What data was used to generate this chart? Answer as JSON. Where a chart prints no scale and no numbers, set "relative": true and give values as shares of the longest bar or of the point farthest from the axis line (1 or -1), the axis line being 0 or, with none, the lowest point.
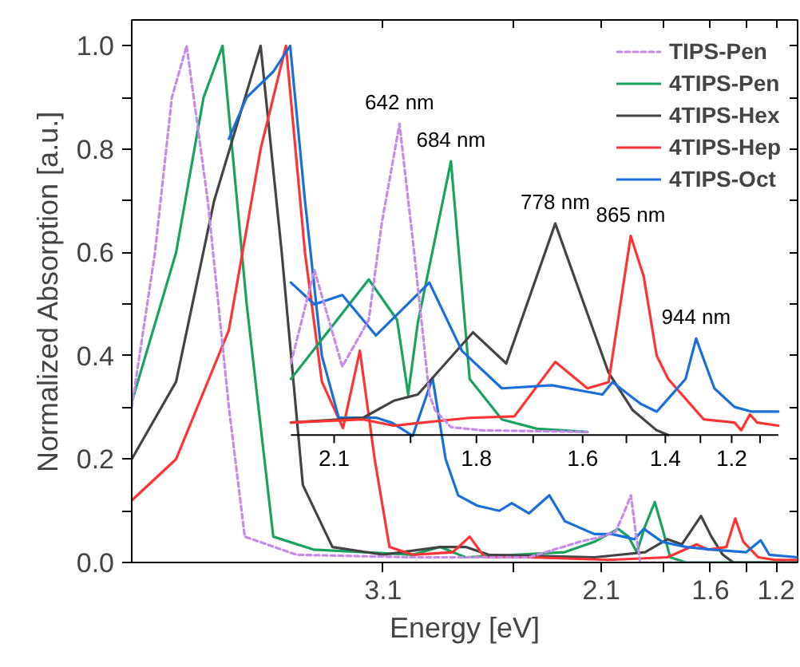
{
  "chart_data": [
    {
      "type": "line",
      "xlabel": "Energy [eV]",
      "ylabel": "Normalized Absorption [a.u.]",
      "xlim": [
        4.29,
        1.138
      ],
      "ylim": [
        0,
        1.05
      ],
      "xticks": [
        3.1,
        {
          "value": 2.48,
          "label": null
        },
        {
          "value": 2.067,
          "label": "2.1"
        },
        {
          "value": 1.771,
          "label": null
        },
        {
          "value": 1.55,
          "label": "1.6"
        },
        {
          "value": 1.378,
          "label": null
        },
        {
          "value": 1.24,
          "label": "1.2"
        }
      ],
      "yticks": [
        {
          "value": 0,
          "label": "0.0"
        },
        {
          "value": 0.1,
          "label": null
        },
        0.2,
        {
          "value": 0.3,
          "label": null
        },
        0.4,
        {
          "value": 0.5,
          "label": null
        },
        0.6,
        {
          "value": 0.7,
          "label": null
        },
        0.8,
        {
          "value": 0.9,
          "label": null
        },
        {
          "value": 1.0,
          "label": "1.0"
        }
      ],
      "grid": false,
      "legend": "top right",
      "series": [
        {
          "name": "TIPS-Pen",
          "color": "#c58be8",
          "line_style": "dashed",
          "x": [
            4.29,
            4.18,
            4.1,
            4.03,
            3.93,
            3.83,
            3.755,
            3.51,
            2.96,
            2.41,
            2.17,
            2.063,
            1.999,
            1.956,
            1.927,
            1.905,
            1.883,
            1.546
          ],
          "values": [
            0.3,
            0.6,
            0.9,
            1.0,
            0.7,
            0.3,
            0.05,
            0.015,
            0.01,
            0.01,
            0.04,
            0.05,
            0.06,
            0.1,
            0.13,
            0.06,
            0.0,
            0.0
          ]
        },
        {
          "name": "4TIPS-Pen",
          "color": "#1aa35e",
          "x": [
            4.29,
            4.08,
            3.95,
            3.86,
            3.746,
            3.62,
            3.43,
            2.96,
            2.83,
            2.71,
            2.24,
            2.1,
            1.987,
            1.939,
            1.899,
            1.86,
            1.814,
            1.774,
            1.741,
            1.665,
            1.138
          ],
          "values": [
            0.31,
            0.6,
            0.9,
            1.0,
            0.5,
            0.05,
            0.025,
            0.015,
            0.03,
            0.01,
            0.02,
            0.04,
            0.065,
            0.05,
            0.02,
            0.07,
            0.117,
            0.06,
            0.01,
            0.0,
            0.0
          ]
        },
        {
          "name": "4TIPS-Hex",
          "color": "#444444",
          "x": [
            4.29,
            4.08,
            3.9,
            3.68,
            3.58,
            3.48,
            3.34,
            3.1,
            2.83,
            2.71,
            2.6,
            2.1,
            1.86,
            1.755,
            1.686,
            1.595,
            1.546,
            1.492,
            1.442,
            1.138
          ],
          "values": [
            0.2,
            0.35,
            0.7,
            1.0,
            0.6,
            0.15,
            0.03,
            0.015,
            0.03,
            0.03,
            0.015,
            0.01,
            0.02,
            0.045,
            0.035,
            0.09,
            0.05,
            0.015,
            0.0,
            0.0
          ]
        },
        {
          "name": "4TIPS-Hep",
          "color": "#ff3333",
          "x": [
            4.29,
            4.08,
            3.83,
            3.68,
            3.56,
            3.47,
            3.39,
            3.29,
            3.21,
            3.14,
            3.07,
            2.96,
            2.77,
            2.69,
            2.62,
            2.41,
            2.03,
            1.755,
            1.615,
            1.564,
            1.475,
            1.433,
            1.395,
            1.324,
            1.247,
            1.138
          ],
          "values": [
            0.12,
            0.2,
            0.45,
            0.8,
            1.0,
            0.6,
            0.35,
            0.26,
            0.41,
            0.2,
            0.03,
            0.015,
            0.02,
            0.05,
            0.01,
            0.01,
            0.005,
            0.01,
            0.035,
            0.025,
            0.03,
            0.085,
            0.04,
            0.01,
            0.005,
            0.005
          ]
        },
        {
          "name": "4TIPS-Oct",
          "color": "#1a6fd8",
          "x": [
            3.83,
            3.746,
            3.62,
            3.54,
            3.47,
            3.39,
            3.31,
            3.13,
            3.056,
            2.96,
            2.866,
            2.804,
            2.745,
            2.655,
            2.55,
            2.491,
            2.41,
            2.313,
            2.24,
            2.1,
            2.018,
            1.91,
            1.866,
            1.779,
            1.665,
            1.546,
            1.381,
            1.313,
            1.272,
            1.138
          ],
          "values": [
            0.82,
            0.9,
            0.95,
            1.0,
            0.7,
            0.4,
            0.28,
            0.28,
            0.27,
            0.245,
            0.357,
            0.2,
            0.13,
            0.11,
            0.1,
            0.115,
            0.095,
            0.13,
            0.08,
            0.055,
            0.055,
            0.045,
            0.065,
            0.04,
            0.03,
            0.025,
            0.02,
            0.043,
            0.015,
            0.01
          ]
        }
      ]
    },
    {
      "type": "line",
      "relative": true,
      "tick_labels": "x",
      "xlim": [
        2.157,
        1.143
      ],
      "xticks": [
        {
          "value": 2.067,
          "label": "2.1"
        },
        {
          "value": 1.908,
          "label": null
        },
        {
          "value": 1.771,
          "label": "1.8"
        },
        {
          "value": 1.653,
          "label": null
        },
        {
          "value": 1.55,
          "label": "1.6"
        },
        {
          "value": 1.459,
          "label": null
        },
        {
          "value": 1.378,
          "label": "1.4"
        },
        {
          "value": 1.305,
          "label": null
        },
        {
          "value": 1.24,
          "label": "1.2"
        },
        {
          "value": 1.181,
          "label": null
        }
      ],
      "annotations": [
        {
          "text": "642 nm",
          "x": 1.931,
          "y": 1.0
        },
        {
          "text": "684 nm",
          "x": 1.824,
          "y": 0.88
        },
        {
          "text": "778 nm",
          "x": 1.607,
          "y": 0.68
        },
        {
          "text": "865 nm",
          "x": 1.45,
          "y": 0.64
        },
        {
          "text": "944 nm",
          "x": 1.314,
          "y": 0.31
        }
      ],
      "series": [
        {
          "color": "#c58be8",
          "line_style": "dashed",
          "x": [
            2.157,
            2.108,
            2.05,
            1.995,
            1.968,
            1.931,
            1.9,
            1.869,
            1.857,
            1.824,
            1.759,
            1.54
          ],
          "values": [
            0.23,
            0.53,
            0.22,
            0.37,
            0.68,
            1.0,
            0.58,
            0.13,
            0.08,
            0.025,
            0.015,
            0.01
          ]
        },
        {
          "color": "#1aa35e",
          "x": [
            2.157,
            1.995,
            1.936,
            1.913,
            1.893,
            1.824,
            1.785,
            1.718,
            1.645,
            1.54
          ],
          "values": [
            0.18,
            0.5,
            0.37,
            0.13,
            0.36,
            0.88,
            0.18,
            0.05,
            0.02,
            0.01
          ]
        },
        {
          "color": "#444444",
          "x": [
            2.157,
            2.007,
            1.943,
            1.893,
            1.778,
            1.709,
            1.607,
            1.54,
            1.496,
            1.446,
            1.396,
            1.372
          ],
          "values": [
            0.04,
            0.055,
            0.11,
            0.13,
            0.33,
            0.23,
            0.68,
            0.39,
            0.2,
            0.08,
            0.015,
            0.0
          ]
        },
        {
          "color": "#ff3333",
          "x": [
            2.157,
            2.007,
            1.943,
            1.786,
            1.692,
            1.607,
            1.54,
            1.496,
            1.45,
            1.423,
            1.396,
            1.372,
            1.298,
            1.234,
            1.22,
            1.202,
            1.187,
            1.143
          ],
          "values": [
            0.04,
            0.05,
            0.03,
            0.055,
            0.06,
            0.235,
            0.15,
            0.17,
            0.64,
            0.51,
            0.255,
            0.18,
            0.05,
            0.04,
            0.015,
            0.066,
            0.04,
            0.03
          ]
        },
        {
          "color": "#1a6fd8",
          "x": [
            2.157,
            2.108,
            2.05,
            1.98,
            1.869,
            1.801,
            1.718,
            1.614,
            1.509,
            1.488,
            1.429,
            1.396,
            1.37,
            1.336,
            1.314,
            1.276,
            1.234,
            1.198,
            1.143
          ],
          "values": [
            0.49,
            0.42,
            0.45,
            0.32,
            0.49,
            0.27,
            0.15,
            0.16,
            0.13,
            0.17,
            0.1,
            0.075,
            0.12,
            0.18,
            0.31,
            0.15,
            0.09,
            0.075,
            0.075
          ]
        }
      ]
    }
  ]
}
